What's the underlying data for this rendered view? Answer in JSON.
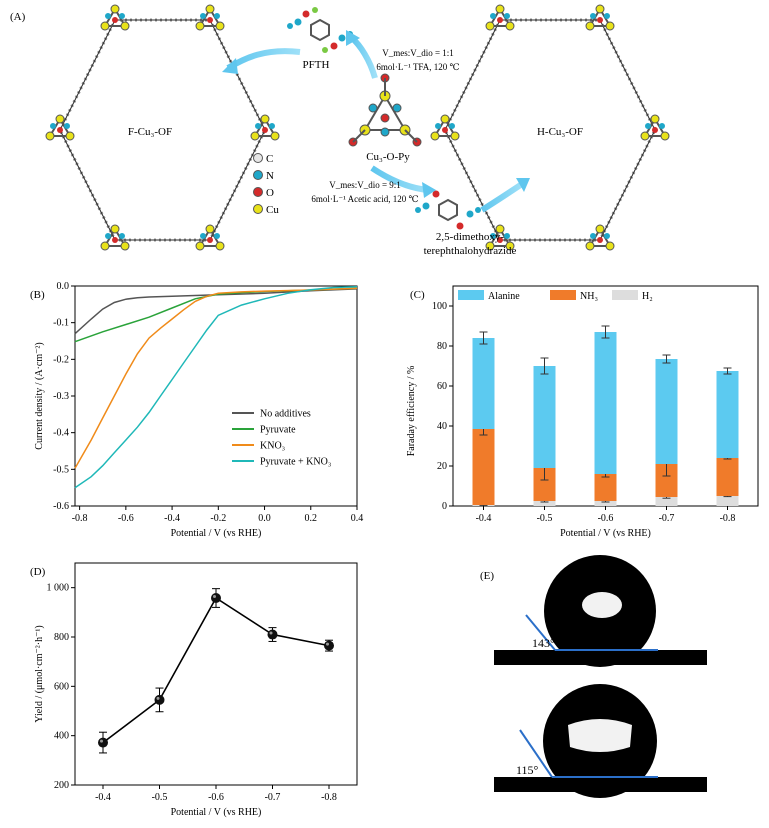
{
  "panelA": {
    "label": "(A)",
    "left_framework": "F-Cu₃-OF",
    "right_framework": "H-Cu₃-OF",
    "center_molecule": "Cu₃-O-Py",
    "top_linker": "PFTH",
    "bottom_linker_line1": "2,5-dimethoxy-",
    "bottom_linker_line2": "terephthalohydrazide",
    "cond_top_1": "V_mes:V_dio = 1:1",
    "cond_top_2": "6mol·L⁻¹ TFA, 120 ℃",
    "cond_bot_1": "V_mes:V_dio = 9:1",
    "cond_bot_2": "6mol·L⁻¹ Acetic acid, 120 ℃",
    "legend": [
      {
        "symbol": "C",
        "color": "#e6e6e6"
      },
      {
        "symbol": "N",
        "color": "#1fa7c9"
      },
      {
        "symbol": "O",
        "color": "#d42a2a"
      },
      {
        "symbol": "Cu",
        "color": "#e8e21a"
      }
    ]
  },
  "chart_data": [
    {
      "id": "B",
      "label": "(B)",
      "type": "line",
      "xlabel": "Potential / V (vs RHE)",
      "ylabel": "Current density / (A·cm⁻²)",
      "xlim": [
        -0.82,
        0.4
      ],
      "ylim": [
        -0.6,
        0.0
      ],
      "xticks": [
        -0.8,
        -0.6,
        -0.4,
        -0.2,
        0.0,
        0.2,
        0.4
      ],
      "yticks": [
        0.0,
        -0.1,
        -0.2,
        -0.3,
        -0.4,
        -0.5,
        -0.6
      ],
      "legend_position": "lower-right",
      "series": [
        {
          "name": "No additives",
          "color": "#555555",
          "x": [
            -0.82,
            -0.75,
            -0.7,
            -0.65,
            -0.6,
            -0.55,
            -0.5,
            -0.4,
            -0.2,
            0.0,
            0.2,
            0.4
          ],
          "y": [
            -0.13,
            -0.09,
            -0.063,
            -0.045,
            -0.036,
            -0.032,
            -0.03,
            -0.028,
            -0.024,
            -0.02,
            -0.013,
            -0.008
          ]
        },
        {
          "name": "Pyruvate",
          "color": "#2aa33a",
          "x": [
            -0.82,
            -0.7,
            -0.6,
            -0.5,
            -0.4,
            -0.3,
            -0.2,
            -0.1,
            0.0,
            0.2,
            0.4
          ],
          "y": [
            -0.152,
            -0.125,
            -0.105,
            -0.085,
            -0.06,
            -0.035,
            -0.022,
            -0.018,
            -0.015,
            -0.011,
            -0.006
          ]
        },
        {
          "name": "KNO₃",
          "color": "#f08b1a",
          "x": [
            -0.82,
            -0.75,
            -0.7,
            -0.65,
            -0.6,
            -0.55,
            -0.5,
            -0.45,
            -0.4,
            -0.35,
            -0.3,
            -0.25,
            -0.2,
            -0.1,
            0.0,
            0.2,
            0.4
          ],
          "y": [
            -0.497,
            -0.42,
            -0.36,
            -0.3,
            -0.24,
            -0.185,
            -0.142,
            -0.115,
            -0.09,
            -0.065,
            -0.042,
            -0.028,
            -0.02,
            -0.016,
            -0.014,
            -0.011,
            -0.006
          ]
        },
        {
          "name": "Pyruvate + KNO₃",
          "color": "#1fb8b8",
          "x": [
            -0.82,
            -0.75,
            -0.7,
            -0.65,
            -0.6,
            -0.55,
            -0.5,
            -0.45,
            -0.4,
            -0.35,
            -0.3,
            -0.25,
            -0.2,
            -0.1,
            0.0,
            0.1,
            0.2,
            0.3,
            0.4
          ],
          "y": [
            -0.55,
            -0.52,
            -0.49,
            -0.455,
            -0.42,
            -0.385,
            -0.345,
            -0.3,
            -0.255,
            -0.21,
            -0.165,
            -0.12,
            -0.08,
            -0.052,
            -0.035,
            -0.02,
            -0.01,
            -0.004,
            -0.002
          ]
        }
      ]
    },
    {
      "id": "C",
      "label": "(C)",
      "type": "bar",
      "xlabel": "Potential / V (vs RHE)",
      "ylabel": "Faraday efficiency / %",
      "ylim": [
        0,
        110
      ],
      "yticks": [
        0,
        20,
        40,
        60,
        80,
        100
      ],
      "categories": [
        "-0.4",
        "-0.5",
        "-0.6",
        "-0.7",
        "-0.8"
      ],
      "legend_position": "top",
      "series": [
        {
          "name": "H₂",
          "color": "#dddddd",
          "values": [
            0.5,
            2.5,
            2.5,
            4.5,
            5.0
          ],
          "errors": [
            0.3,
            0.5,
            0.5,
            0.6,
            0.3
          ]
        },
        {
          "name": "NH₃",
          "color": "#f07b2a",
          "values": [
            38,
            16.5,
            13.5,
            16.5,
            19
          ],
          "errors": [
            3,
            6,
            1.5,
            6,
            0.5
          ]
        },
        {
          "name": "Alanine",
          "color": "#5ccaf0",
          "values": [
            45.5,
            51,
            71,
            52.5,
            43.5
          ],
          "errors": [
            3,
            4,
            3,
            2,
            1.5
          ]
        }
      ]
    },
    {
      "id": "D",
      "label": "(D)",
      "type": "line",
      "xlabel": "Potential / V (vs RHE)",
      "ylabel": "Yield / (μmol·cm⁻²·h⁻¹)",
      "categories": [
        "-0.4",
        "-0.5",
        "-0.6",
        "-0.7",
        "-0.8"
      ],
      "ylim": [
        200,
        1100
      ],
      "yticks": [
        200,
        400,
        600,
        800,
        "1 000"
      ],
      "ytick_values": [
        200,
        400,
        600,
        800,
        1000
      ],
      "values": [
        372,
        545,
        958,
        810,
        765
      ],
      "errors": [
        42,
        48,
        38,
        28,
        22
      ]
    }
  ],
  "panelE": {
    "label": "(E)",
    "angle_top": "143°",
    "angle_bottom": "115°"
  }
}
